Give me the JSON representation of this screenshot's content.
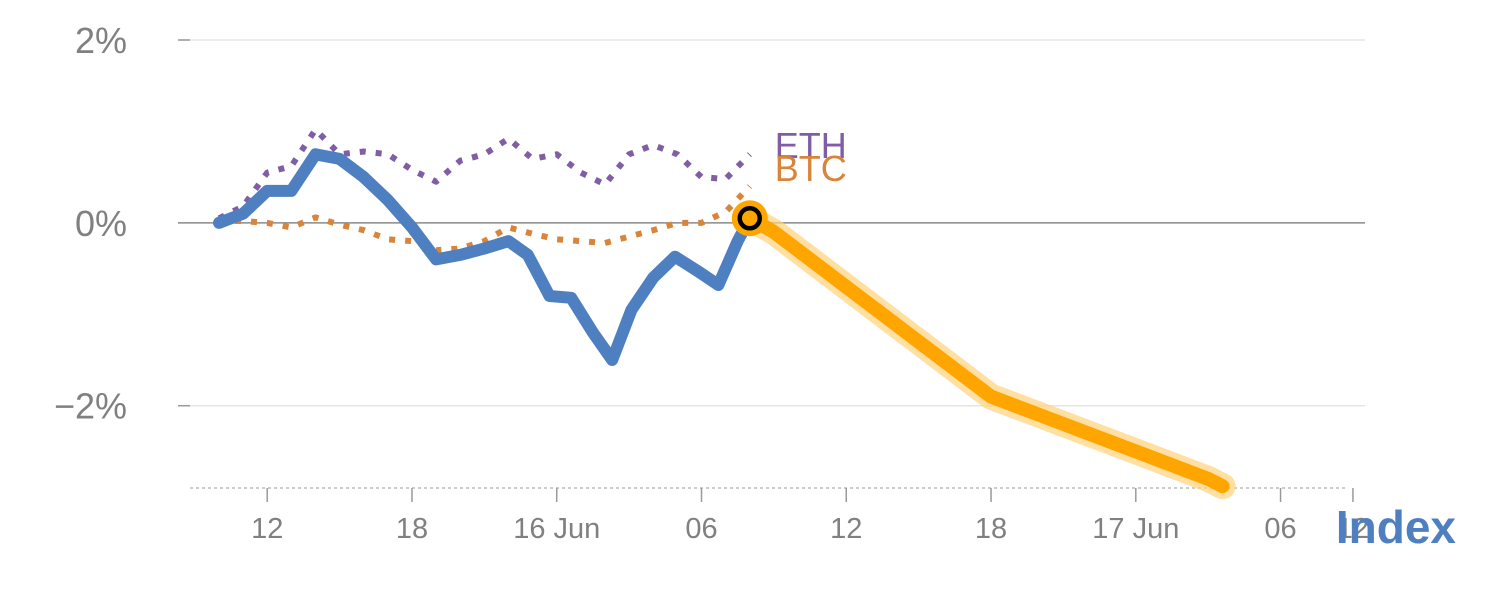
{
  "chart_data": {
    "type": "line",
    "colors": {
      "index": "#4e7fc0",
      "forecast": "#ffa500",
      "forecast_glow": "#ffd27a",
      "btc": "#d8843a",
      "eth": "#7f5ea6",
      "tick_text": "#808080",
      "zero_line": "#8a8a8a",
      "grid": "#e6e6e6"
    },
    "y_axis": {
      "ylim": [
        -2.9,
        2.0
      ],
      "ticks": [
        2,
        0,
        -2
      ],
      "tick_labels": [
        "2%",
        "0%",
        "−2%"
      ]
    },
    "x_axis": {
      "xlim": [
        8.8,
        57.5
      ],
      "ticks": [
        12,
        18,
        24,
        30,
        36,
        42,
        48,
        54
      ],
      "tick_labels": [
        "12",
        "18",
        "16 Jun",
        "06",
        "12",
        "18",
        "17 Jun",
        "06"
      ],
      "last_partial_tick": 57,
      "last_partial_label": "12"
    },
    "series": [
      {
        "name": "Index",
        "key": "index",
        "style": "solid",
        "points": [
          [
            10,
            0.0
          ],
          [
            11,
            0.1
          ],
          [
            12,
            0.35
          ],
          [
            13,
            0.35
          ],
          [
            14,
            0.75
          ],
          [
            15,
            0.7
          ],
          [
            16,
            0.5
          ],
          [
            17,
            0.25
          ],
          [
            18,
            -0.05
          ],
          [
            19,
            -0.4
          ],
          [
            20,
            -0.35
          ],
          [
            21,
            -0.28
          ],
          [
            22,
            -0.2
          ],
          [
            22.8,
            -0.35
          ],
          [
            23.7,
            -0.8
          ],
          [
            24.6,
            -0.82
          ],
          [
            25.5,
            -1.2
          ],
          [
            26.3,
            -1.5
          ],
          [
            27.1,
            -0.95
          ],
          [
            28,
            -0.6
          ],
          [
            28.9,
            -0.37
          ],
          [
            29.8,
            -0.52
          ],
          [
            30.7,
            -0.68
          ],
          [
            31.5,
            -0.2
          ],
          [
            32.0,
            0.05
          ]
        ]
      },
      {
        "name": "BTC",
        "key": "btc",
        "style": "dotted",
        "points": [
          [
            10,
            0.02
          ],
          [
            11,
            0.02
          ],
          [
            12,
            0.0
          ],
          [
            13,
            -0.05
          ],
          [
            14,
            0.06
          ],
          [
            15,
            -0.02
          ],
          [
            16,
            -0.08
          ],
          [
            17,
            -0.18
          ],
          [
            18,
            -0.2
          ],
          [
            19,
            -0.3
          ],
          [
            20,
            -0.28
          ],
          [
            21,
            -0.2
          ],
          [
            22,
            -0.05
          ],
          [
            23,
            -0.12
          ],
          [
            24,
            -0.18
          ],
          [
            25,
            -0.2
          ],
          [
            26,
            -0.22
          ],
          [
            27,
            -0.15
          ],
          [
            28,
            -0.08
          ],
          [
            29,
            0.0
          ],
          [
            30,
            0.0
          ],
          [
            31,
            0.12
          ],
          [
            32,
            0.4
          ]
        ]
      },
      {
        "name": "ETH",
        "key": "eth",
        "style": "dotted",
        "points": [
          [
            10,
            0.05
          ],
          [
            11,
            0.18
          ],
          [
            12,
            0.55
          ],
          [
            13,
            0.62
          ],
          [
            14,
            1.02
          ],
          [
            15,
            0.75
          ],
          [
            16,
            0.78
          ],
          [
            17,
            0.75
          ],
          [
            18,
            0.58
          ],
          [
            19,
            0.45
          ],
          [
            20,
            0.68
          ],
          [
            21,
            0.75
          ],
          [
            22,
            0.92
          ],
          [
            23,
            0.7
          ],
          [
            24,
            0.75
          ],
          [
            25,
            0.55
          ],
          [
            26,
            0.42
          ],
          [
            27,
            0.75
          ],
          [
            28,
            0.85
          ],
          [
            29,
            0.75
          ],
          [
            30,
            0.5
          ],
          [
            31,
            0.48
          ],
          [
            32,
            0.75
          ]
        ]
      },
      {
        "name": "",
        "key": "forecast",
        "style": "forecast",
        "points": [
          [
            32,
            0.05
          ],
          [
            33,
            -0.1
          ],
          [
            36,
            -0.7
          ],
          [
            39,
            -1.3
          ],
          [
            42,
            -1.9
          ],
          [
            45,
            -2.2
          ],
          [
            48,
            -2.5
          ],
          [
            51,
            -2.8
          ],
          [
            51.6,
            -2.88
          ]
        ]
      }
    ],
    "labels": {
      "eth": "ETH",
      "btc": "BTC",
      "index": "Index"
    },
    "current_point": {
      "x": 32,
      "y": 0.05
    },
    "zero_line": true,
    "grid": true,
    "legend": "inline-at-line-ends"
  }
}
